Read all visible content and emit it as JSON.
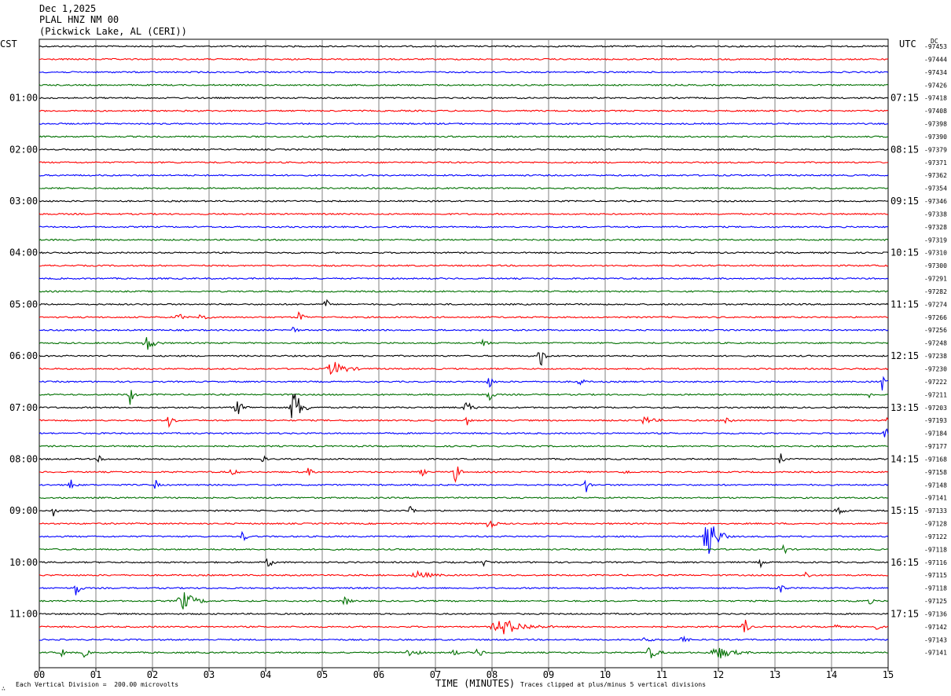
{
  "header": {
    "date": "Dec 1,2025",
    "station": "PLAL HNZ NM 00",
    "location": "(Pickwick Lake, AL (CERI))"
  },
  "left_tz": "CST",
  "right_tz": "UTC",
  "dc_label": "DC",
  "footer": {
    "scale_note": "Each Vertical Division =  200.00 microvolts",
    "xlabel": "TIME (MINUTES)",
    "clip_note": "Traces clipped at plus/minus 5 vertical divisions"
  },
  "colors": {
    "cycle": [
      "#000000",
      "#ff0000",
      "#0000ff",
      "#007000"
    ],
    "grid": "#808080"
  },
  "chart_data": {
    "type": "line",
    "title": "PLAL HNZ NM 00",
    "xlabel": "TIME (MINUTES)",
    "xlim": [
      0,
      15
    ],
    "x_ticks": [
      "00",
      "01",
      "02",
      "03",
      "04",
      "05",
      "06",
      "07",
      "08",
      "09",
      "10",
      "11",
      "12",
      "13",
      "14",
      "15"
    ],
    "left_hour_labels": [
      "01:00",
      "02:00",
      "03:00",
      "04:00",
      "05:00",
      "06:00",
      "07:00",
      "08:00",
      "09:00",
      "10:00",
      "11:00"
    ],
    "right_hour_labels": [
      "07:15",
      "08:15",
      "09:15",
      "10:15",
      "11:15",
      "12:15",
      "13:15",
      "14:15",
      "15:15",
      "16:15",
      "17:15"
    ],
    "hour_label_rows": [
      4,
      8,
      12,
      16,
      20,
      24,
      28,
      32,
      36,
      40,
      44
    ],
    "trace_dc_offsets": [
      -97453,
      -97444,
      -97434,
      -97426,
      -97418,
      -97408,
      -97398,
      -97390,
      -97379,
      -97371,
      -97362,
      -97354,
      -97346,
      -97338,
      -97328,
      -97319,
      -97310,
      -97300,
      -97291,
      -97282,
      -97274,
      -97266,
      -97256,
      -97248,
      -97238,
      -97230,
      -97222,
      -97211,
      -97203,
      -97193,
      -97184,
      -97177,
      -97168,
      -97158,
      -97148,
      -97141,
      -97133,
      -97128,
      -97122,
      -97118,
      -97116,
      -97115,
      -97118,
      -97125,
      -97136,
      -97142,
      -97143,
      -97141
    ],
    "events": [
      {
        "row": 20,
        "minute": 5.05,
        "amp": 14,
        "width": 0.1
      },
      {
        "row": 21,
        "minute": 2.45,
        "amp": 8,
        "width": 0.15
      },
      {
        "row": 21,
        "minute": 2.85,
        "amp": 6,
        "width": 0.2
      },
      {
        "row": 21,
        "minute": 4.6,
        "amp": 10,
        "width": 0.15
      },
      {
        "row": 22,
        "minute": 4.45,
        "amp": 8,
        "width": 0.15
      },
      {
        "row": 23,
        "minute": 1.9,
        "amp": 10,
        "width": 0.3
      },
      {
        "row": 23,
        "minute": 7.85,
        "amp": 6,
        "width": 0.15
      },
      {
        "row": 24,
        "minute": 8.85,
        "amp": 20,
        "width": 0.15
      },
      {
        "row": 25,
        "minute": 5.2,
        "amp": 10,
        "width": 0.5
      },
      {
        "row": 26,
        "minute": 7.95,
        "amp": 8,
        "width": 0.15
      },
      {
        "row": 26,
        "minute": 9.55,
        "amp": 6,
        "width": 0.15
      },
      {
        "row": 26,
        "minute": 14.9,
        "amp": 18,
        "width": 0.1
      },
      {
        "row": 27,
        "minute": 1.6,
        "amp": 14,
        "width": 0.15
      },
      {
        "row": 27,
        "minute": 7.95,
        "amp": 10,
        "width": 0.15
      },
      {
        "row": 27,
        "minute": 14.65,
        "amp": 5,
        "width": 0.15
      },
      {
        "row": 28,
        "minute": 3.5,
        "amp": 10,
        "width": 0.25
      },
      {
        "row": 28,
        "minute": 4.5,
        "amp": 28,
        "width": 0.3
      },
      {
        "row": 28,
        "minute": 7.55,
        "amp": 10,
        "width": 0.2
      },
      {
        "row": 29,
        "minute": 2.3,
        "amp": 10,
        "width": 0.15
      },
      {
        "row": 29,
        "minute": 7.55,
        "amp": 8,
        "width": 0.1
      },
      {
        "row": 29,
        "minute": 10.7,
        "amp": 5,
        "width": 0.35
      },
      {
        "row": 29,
        "minute": 12.15,
        "amp": 8,
        "width": 0.15
      },
      {
        "row": 29,
        "minute": 14.95,
        "amp": 6,
        "width": 0.1
      },
      {
        "row": 30,
        "minute": 14.95,
        "amp": 8,
        "width": 0.15
      },
      {
        "row": 32,
        "minute": 1.05,
        "amp": 5,
        "width": 0.1
      },
      {
        "row": 32,
        "minute": 3.95,
        "amp": 6,
        "width": 0.1
      },
      {
        "row": 32,
        "minute": 13.1,
        "amp": 8,
        "width": 0.15
      },
      {
        "row": 33,
        "minute": 3.4,
        "amp": 6,
        "width": 0.15
      },
      {
        "row": 33,
        "minute": 4.75,
        "amp": 6,
        "width": 0.15
      },
      {
        "row": 33,
        "minute": 6.75,
        "amp": 6,
        "width": 0.15
      },
      {
        "row": 33,
        "minute": 7.35,
        "amp": 16,
        "width": 0.15
      },
      {
        "row": 33,
        "minute": 10.35,
        "amp": 8,
        "width": 0.1
      },
      {
        "row": 34,
        "minute": 0.55,
        "amp": 10,
        "width": 0.15
      },
      {
        "row": 34,
        "minute": 2.05,
        "amp": 8,
        "width": 0.1
      },
      {
        "row": 34,
        "minute": 9.65,
        "amp": 12,
        "width": 0.15
      },
      {
        "row": 36,
        "minute": 0.25,
        "amp": 10,
        "width": 0.1
      },
      {
        "row": 36,
        "minute": 6.55,
        "amp": 12,
        "width": 0.1
      },
      {
        "row": 36,
        "minute": 14.1,
        "amp": 8,
        "width": 0.2
      },
      {
        "row": 37,
        "minute": 7.95,
        "amp": 8,
        "width": 0.2
      },
      {
        "row": 38,
        "minute": 3.6,
        "amp": 8,
        "width": 0.15
      },
      {
        "row": 38,
        "minute": 11.8,
        "amp": 34,
        "width": 0.4
      },
      {
        "row": 39,
        "minute": 13.15,
        "amp": 8,
        "width": 0.15
      },
      {
        "row": 40,
        "minute": 4.05,
        "amp": 6,
        "width": 0.2
      },
      {
        "row": 40,
        "minute": 7.85,
        "amp": 5,
        "width": 0.1
      },
      {
        "row": 40,
        "minute": 12.75,
        "amp": 5,
        "width": 0.15
      },
      {
        "row": 41,
        "minute": 6.7,
        "amp": 5,
        "width": 0.5
      },
      {
        "row": 41,
        "minute": 13.55,
        "amp": 6,
        "width": 0.15
      },
      {
        "row": 42,
        "minute": 0.65,
        "amp": 12,
        "width": 0.15
      },
      {
        "row": 42,
        "minute": 13.1,
        "amp": 8,
        "width": 0.15
      },
      {
        "row": 43,
        "minute": 2.55,
        "amp": 12,
        "width": 0.5
      },
      {
        "row": 43,
        "minute": 5.4,
        "amp": 8,
        "width": 0.15
      },
      {
        "row": 43,
        "minute": 14.65,
        "amp": 6,
        "width": 0.15
      },
      {
        "row": 45,
        "minute": 8.2,
        "amp": 10,
        "width": 0.9
      },
      {
        "row": 45,
        "minute": 12.45,
        "amp": 18,
        "width": 0.15
      },
      {
        "row": 45,
        "minute": 14.05,
        "amp": 8,
        "width": 0.1
      },
      {
        "row": 45,
        "minute": 14.8,
        "amp": 6,
        "width": 0.1
      },
      {
        "row": 46,
        "minute": 10.7,
        "amp": 5,
        "width": 0.2
      },
      {
        "row": 46,
        "minute": 11.35,
        "amp": 5,
        "width": 0.2
      },
      {
        "row": 47,
        "minute": 0.4,
        "amp": 6,
        "width": 0.1
      },
      {
        "row": 47,
        "minute": 0.8,
        "amp": 6,
        "width": 0.15
      },
      {
        "row": 47,
        "minute": 6.55,
        "amp": 6,
        "width": 0.3
      },
      {
        "row": 47,
        "minute": 7.3,
        "amp": 8,
        "width": 0.15
      },
      {
        "row": 47,
        "minute": 7.75,
        "amp": 10,
        "width": 0.15
      },
      {
        "row": 47,
        "minute": 10.8,
        "amp": 8,
        "width": 0.3
      },
      {
        "row": 47,
        "minute": 12.0,
        "amp": 8,
        "width": 0.6
      }
    ]
  }
}
